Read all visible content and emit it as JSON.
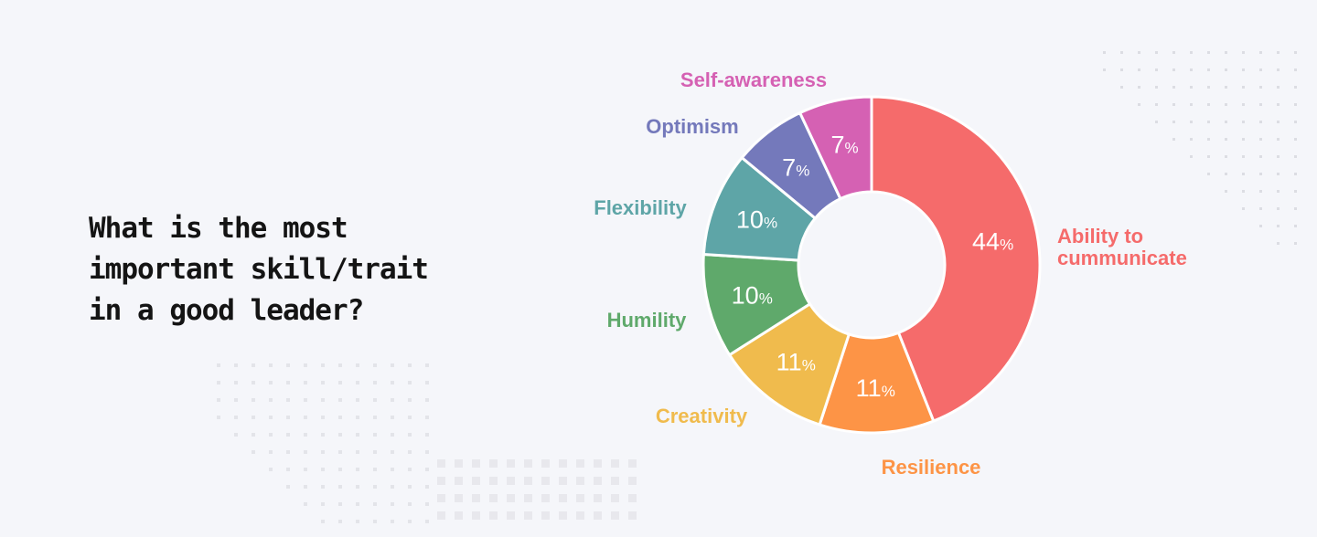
{
  "question": {
    "lines": [
      "What is the most",
      "important skill/trait",
      "in a good leader?"
    ]
  },
  "chart_data": {
    "type": "pie",
    "donut": true,
    "percent_suffix": "%",
    "slices": [
      {
        "label": "Ability to cummunicate",
        "label_lines": [
          "Ability to",
          "cummunicate"
        ],
        "value": 44,
        "color": "#f56b6b"
      },
      {
        "label": "Resilience",
        "label_lines": [
          "Resilience"
        ],
        "value": 11,
        "color": "#fd9446"
      },
      {
        "label": "Creativity",
        "label_lines": [
          "Creativity"
        ],
        "value": 11,
        "color": "#f0bb4d"
      },
      {
        "label": "Humility",
        "label_lines": [
          "Humility"
        ],
        "value": 10,
        "color": "#5fa96b"
      },
      {
        "label": "Flexibility",
        "label_lines": [
          "Flexibility"
        ],
        "value": 10,
        "color": "#5ea5a7"
      },
      {
        "label": "Optimism",
        "label_lines": [
          "Optimism"
        ],
        "value": 7,
        "color": "#7479bb"
      },
      {
        "label": "Self-awareness",
        "label_lines": [
          "Self-awareness"
        ],
        "value": 7,
        "color": "#d561b3"
      }
    ]
  }
}
